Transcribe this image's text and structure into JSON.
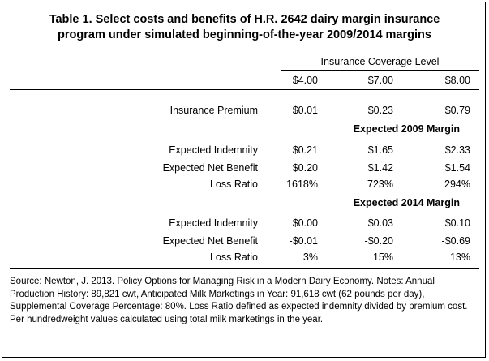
{
  "title": {
    "line1": "Table 1. Select costs and benefits of H.R. 2642 dairy margin insurance",
    "line2": "program under simulated beginning-of-the-year 2009/2014 margins"
  },
  "header": {
    "group_label": "Insurance Coverage Level",
    "columns": [
      "$4.00",
      "$7.00",
      "$8.00"
    ]
  },
  "premium_row": {
    "label": "Insurance Premium",
    "values": [
      "$0.01",
      "$0.23",
      "$0.79"
    ]
  },
  "sections": [
    {
      "heading": "Expected 2009 Margin",
      "rows": [
        {
          "label": "Expected Indemnity",
          "values": [
            "$0.21",
            "$1.65",
            "$2.33"
          ]
        },
        {
          "label": "Expected Net Benefit",
          "values": [
            "$0.20",
            "$1.42",
            "$1.54"
          ]
        },
        {
          "label": "Loss Ratio",
          "values": [
            "1618%",
            "723%",
            "294%"
          ]
        }
      ]
    },
    {
      "heading": "Expected 2014 Margin",
      "rows": [
        {
          "label": "Expected Indemnity",
          "values": [
            "$0.00",
            "$0.03",
            "$0.10"
          ]
        },
        {
          "label": "Expected Net Benefit",
          "values": [
            "-$0.01",
            "-$0.20",
            "-$0.69"
          ]
        },
        {
          "label": "Loss Ratio",
          "values": [
            "3%",
            "15%",
            "13%"
          ]
        }
      ]
    }
  ],
  "source_note": "Source: Newton, J. 2013. Policy Options for Managing Risk in a Modern Dairy Economy. Notes: Annual Production History: 89,821 cwt, Anticipated Milk Marketings in Year: 91,618 cwt (62 pounds per day), Supplemental Coverage Percentage: 80%. Loss Ratio defined as expected indemnity divided by premium cost. Per hundredweight values calculated using total milk marketings in the year."
}
